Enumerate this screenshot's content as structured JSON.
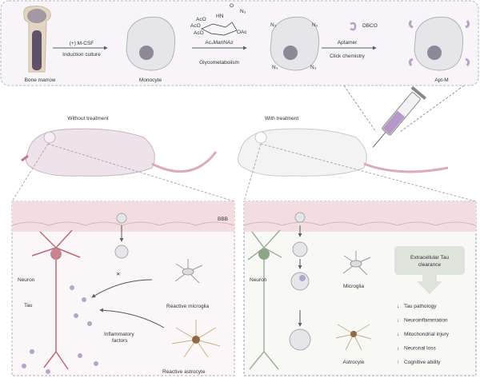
{
  "colors": {
    "cell": "#e6e5ea",
    "nucleus": "#8c8896",
    "aptamer": "#b7a2c6",
    "bbb": "#f2dde1",
    "panel": "#f7f5f8",
    "down": "#a8485a",
    "up": "#8fa58a",
    "neuron_left": "#b96b79",
    "neuron_right": "#9fb09a"
  },
  "top": {
    "bone_marrow": "Bone marrow",
    "step1_top": "(+) M-CSF",
    "step1_bottom": "Induction culture",
    "monocyte": "Monocyte",
    "chem_aco1": "AcO",
    "chem_aco2": "AcO",
    "chem_aco3": "AcO",
    "chem_hn": "HN",
    "chem_o": "O",
    "chem_n3": "N₃",
    "chem_oac": "OAc",
    "step2_top": "Ac₄ManNAz",
    "step2_bottom": "Glycometabolism",
    "azide": "N₃",
    "dbco": "DBCO",
    "step3_top": "Aptamer",
    "step3_bottom": "Click chemistry",
    "apt_m": "Apt-M"
  },
  "mice": {
    "without": "Without treatment",
    "with": "With treatment"
  },
  "left_panel": {
    "bbb": "BBB",
    "neuron": "Neuron",
    "tau": "Tau",
    "reactive_microglia": "Reactive microglia",
    "inflammatory_1": "Inflammatory",
    "inflammatory_2": "factors",
    "reactive_astrocyte": "Reactive astrocyte"
  },
  "right_panel": {
    "neuron": "Neuron",
    "microglia": "Microglia",
    "astrocyte": "Astrocyte",
    "clearance_1": "Extracellular Tau",
    "clearance_2": "clearance",
    "outcomes": [
      {
        "label": "Tau pathology",
        "direction": "down"
      },
      {
        "label": "Neuroinflammation",
        "direction": "down"
      },
      {
        "label": "Mitochondrial injury",
        "direction": "down"
      },
      {
        "label": "Neuronal loss",
        "direction": "down"
      },
      {
        "label": "Cognitive ability",
        "direction": "up"
      }
    ]
  }
}
